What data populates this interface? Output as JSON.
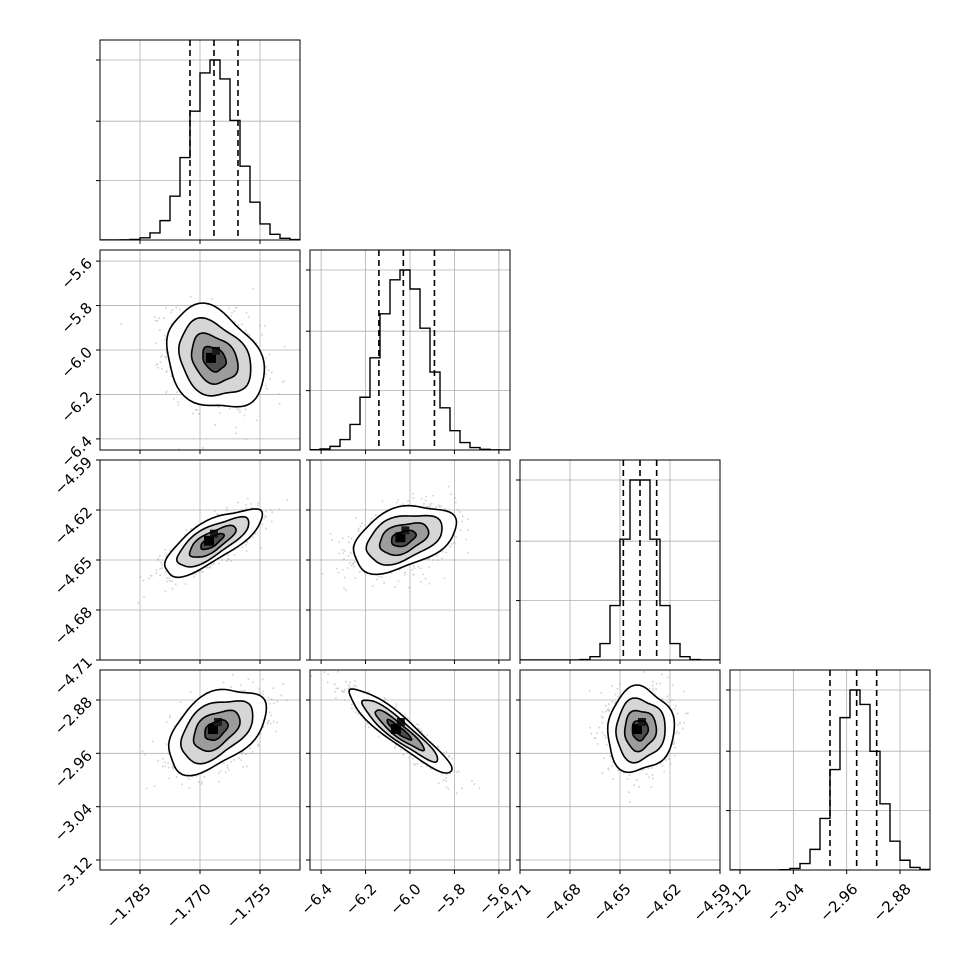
{
  "chart_data": {
    "type": "corner",
    "parameters": [
      {
        "index": 0,
        "range": [
          -1.795,
          -1.745
        ],
        "ticks": [
          -1.785,
          -1.77,
          -1.755
        ],
        "tick_labels": [
          "−1.785",
          "−1.770",
          "−1.755"
        ],
        "mean": -1.7665,
        "sd": 0.0058,
        "quantiles": [
          -1.7725,
          -1.7665,
          -1.7605
        ]
      },
      {
        "index": 1,
        "range": [
          -6.45,
          -5.55
        ],
        "ticks": [
          -6.4,
          -6.2,
          -6.0,
          -5.8,
          -5.6
        ],
        "tick_labels": [
          "−6.4",
          "−6.2",
          "−6.0",
          "−5.8",
          "−5.6"
        ],
        "mean": -6.03,
        "sd": 0.11,
        "quantiles": [
          -6.14,
          -6.03,
          -5.89
        ]
      },
      {
        "index": 2,
        "range": [
          -4.71,
          -4.59
        ],
        "ticks": [
          -4.71,
          -4.68,
          -4.65,
          -4.62,
          -4.59
        ],
        "tick_labels": [
          "−4.71",
          "−4.68",
          "−4.65",
          "−4.62",
          "−4.59"
        ],
        "mean": -4.638,
        "sd": 0.0095,
        "quantiles": [
          -4.648,
          -4.638,
          -4.628
        ]
      },
      {
        "index": 3,
        "range": [
          -3.135,
          -2.835
        ],
        "ticks": [
          -3.12,
          -3.04,
          -2.96,
          -2.88
        ],
        "tick_labels": [
          "−3.12",
          "−3.04",
          "−2.96",
          "−2.88"
        ],
        "mean": -2.945,
        "sd": 0.03,
        "quantiles": [
          -2.985,
          -2.945,
          -2.915
        ]
      }
    ],
    "pairs": [
      {
        "x": 0,
        "y": 1,
        "center": [
          -1.7665,
          -6.04
        ],
        "rho": -0.25
      },
      {
        "x": 0,
        "y": 2,
        "center": [
          -1.767,
          -4.639
        ],
        "rho": 0.75
      },
      {
        "x": 0,
        "y": 3,
        "center": [
          -1.766,
          -2.925
        ],
        "rho": 0.45
      },
      {
        "x": 1,
        "y": 2,
        "center": [
          -6.03,
          -4.637
        ],
        "rho": 0.4
      },
      {
        "x": 1,
        "y": 3,
        "center": [
          -6.05,
          -2.925
        ],
        "rho": -0.92
      },
      {
        "x": 2,
        "y": 3,
        "center": [
          -4.638,
          -2.925
        ],
        "rho": 0.05
      }
    ],
    "style": {
      "grid": true,
      "line_color": "#000000",
      "point_color": "#808080",
      "quantile_line": "dashed"
    }
  }
}
